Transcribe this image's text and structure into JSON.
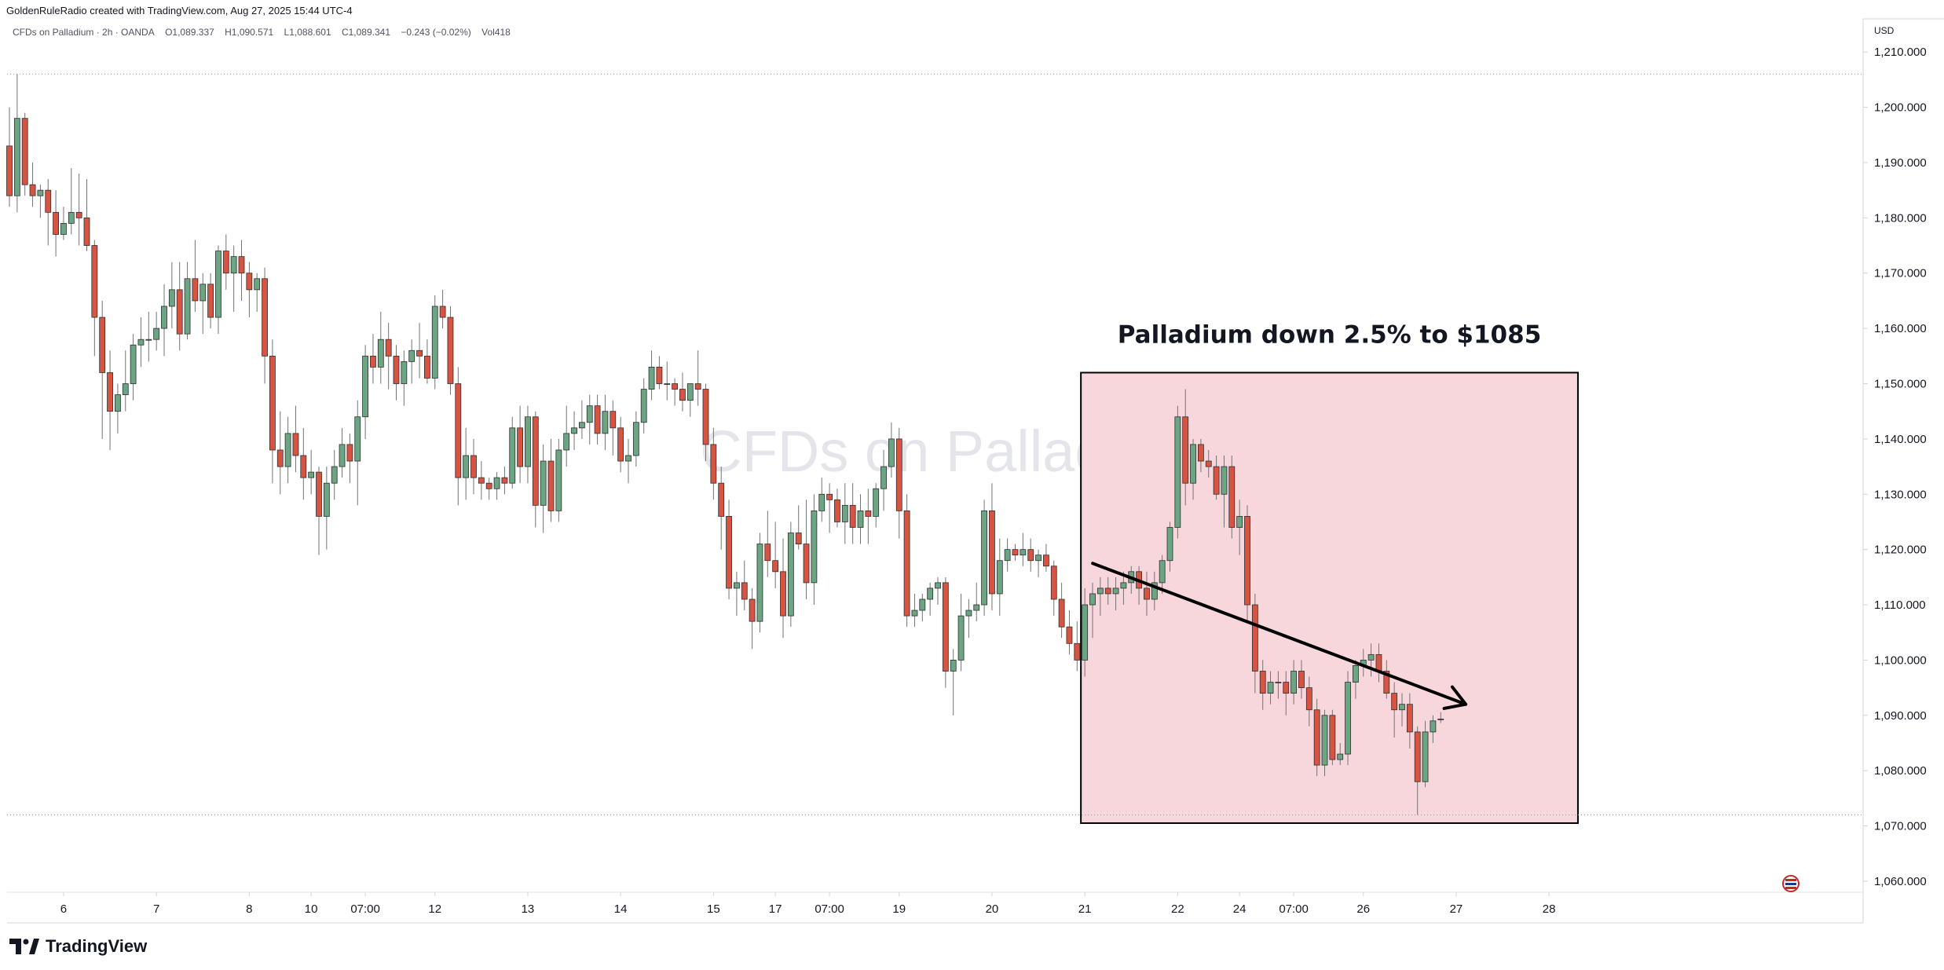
{
  "header": {
    "credit": "GoldenRuleRadio created with TradingView.com, Aug 27, 2025 15:44 UTC-4",
    "symbol": "CFDs on Palladium · 2h · OANDA",
    "open": "O1,089.337",
    "high": "H1,090.571",
    "low": "L1,088.601",
    "close": "C1,089.341",
    "change": "−0.243 (−0.02%)",
    "volume": "Vol418"
  },
  "currency": "USD",
  "watermark": "CFDs on Palladium",
  "brand": {
    "name": "TradingView",
    "icon": "tradingview-logo-icon"
  },
  "colors": {
    "up": "#6ba583",
    "down": "#d75442",
    "box_fill": "#f8d7dc",
    "text": "#131722",
    "axis_text": "#131722"
  },
  "chart_data": {
    "type": "candlestick",
    "symbol": "CFDs on Palladium",
    "interval": "2h",
    "ylim": [
      1058,
      1216
    ],
    "yticks": [
      1060,
      1070,
      1080,
      1090,
      1100,
      1110,
      1120,
      1130,
      1140,
      1150,
      1160,
      1170,
      1180,
      1190,
      1200,
      1210
    ],
    "ytick_labels": [
      "1,060.000",
      "1,070.000",
      "1,080.000",
      "1,090.000",
      "1,100.000",
      "1,110.000",
      "1,120.000",
      "1,130.000",
      "1,140.000",
      "1,150.000",
      "1,160.000",
      "1,170.000",
      "1,180.000",
      "1,190.000",
      "1,200.000",
      "1,210.000"
    ],
    "xticks": [
      {
        "i": 7,
        "label": "6"
      },
      {
        "i": 19,
        "label": "7"
      },
      {
        "i": 31,
        "label": "8"
      },
      {
        "i": 39,
        "label": "10"
      },
      {
        "i": 46,
        "label": "07:00"
      },
      {
        "i": 55,
        "label": "12"
      },
      {
        "i": 67,
        "label": "13"
      },
      {
        "i": 79,
        "label": "14"
      },
      {
        "i": 91,
        "label": "15"
      },
      {
        "i": 99,
        "label": "17"
      },
      {
        "i": 106,
        "label": "07:00"
      },
      {
        "i": 115,
        "label": "19"
      },
      {
        "i": 127,
        "label": "20"
      },
      {
        "i": 139,
        "label": "21"
      },
      {
        "i": 151,
        "label": "22"
      },
      {
        "i": 159,
        "label": "24"
      },
      {
        "i": 166,
        "label": "07:00"
      },
      {
        "i": 175,
        "label": "26"
      },
      {
        "i": 187,
        "label": "27"
      },
      {
        "i": 199,
        "label": "28"
      }
    ],
    "levels": [
      1206,
      1072
    ],
    "candles": [
      [
        1193,
        1200,
        1182,
        1184
      ],
      [
        1184,
        1206,
        1181,
        1198
      ],
      [
        1198,
        1199,
        1184,
        1186
      ],
      [
        1186,
        1190,
        1182,
        1184
      ],
      [
        1184,
        1186,
        1180,
        1185
      ],
      [
        1185,
        1187,
        1175,
        1181
      ],
      [
        1181,
        1185,
        1173,
        1177
      ],
      [
        1177,
        1182,
        1176,
        1179
      ],
      [
        1179,
        1189,
        1177,
        1181
      ],
      [
        1181,
        1188,
        1175,
        1180
      ],
      [
        1180,
        1187,
        1174,
        1175
      ],
      [
        1175,
        1176,
        1155,
        1162
      ],
      [
        1162,
        1165,
        1140,
        1152
      ],
      [
        1152,
        1156,
        1138,
        1145
      ],
      [
        1145,
        1150,
        1141,
        1148
      ],
      [
        1148,
        1156,
        1145,
        1150
      ],
      [
        1150,
        1159,
        1147,
        1157
      ],
      [
        1157,
        1162,
        1153,
        1158
      ],
      [
        1158,
        1163,
        1154,
        1158
      ],
      [
        1158,
        1163,
        1156,
        1160
      ],
      [
        1160,
        1168,
        1155,
        1164
      ],
      [
        1164,
        1172,
        1160,
        1167
      ],
      [
        1167,
        1172,
        1156,
        1159
      ],
      [
        1159,
        1172,
        1158,
        1169
      ],
      [
        1169,
        1176,
        1163,
        1165
      ],
      [
        1165,
        1170,
        1159,
        1168
      ],
      [
        1168,
        1170,
        1160,
        1162
      ],
      [
        1162,
        1175,
        1159,
        1174
      ],
      [
        1174,
        1177,
        1167,
        1170
      ],
      [
        1170,
        1175,
        1163,
        1173
      ],
      [
        1173,
        1176,
        1165,
        1170
      ],
      [
        1170,
        1172,
        1162,
        1167
      ],
      [
        1167,
        1170,
        1163,
        1169
      ],
      [
        1169,
        1171,
        1150,
        1155
      ],
      [
        1155,
        1158,
        1132,
        1138
      ],
      [
        1138,
        1145,
        1130,
        1135
      ],
      [
        1135,
        1144,
        1132,
        1141
      ],
      [
        1141,
        1146,
        1134,
        1137
      ],
      [
        1137,
        1142,
        1129,
        1133
      ],
      [
        1133,
        1138,
        1130,
        1134
      ],
      [
        1134,
        1135,
        1119,
        1126
      ],
      [
        1126,
        1135,
        1120,
        1132
      ],
      [
        1132,
        1138,
        1129,
        1135
      ],
      [
        1135,
        1142,
        1133,
        1139
      ],
      [
        1139,
        1141,
        1132,
        1136
      ],
      [
        1136,
        1147,
        1128,
        1144
      ],
      [
        1144,
        1157,
        1140,
        1155
      ],
      [
        1155,
        1159,
        1150,
        1153
      ],
      [
        1153,
        1163,
        1150,
        1158
      ],
      [
        1158,
        1161,
        1149,
        1155
      ],
      [
        1155,
        1157,
        1147,
        1150
      ],
      [
        1150,
        1156,
        1146,
        1154
      ],
      [
        1154,
        1158,
        1150,
        1156
      ],
      [
        1156,
        1161,
        1151,
        1155
      ],
      [
        1155,
        1158,
        1150,
        1151
      ],
      [
        1151,
        1166,
        1149,
        1164
      ],
      [
        1164,
        1167,
        1160,
        1162
      ],
      [
        1162,
        1164,
        1148,
        1150
      ],
      [
        1150,
        1153,
        1128,
        1133
      ],
      [
        1133,
        1142,
        1129,
        1137
      ],
      [
        1137,
        1140,
        1130,
        1133
      ],
      [
        1133,
        1136,
        1129,
        1132
      ],
      [
        1132,
        1133,
        1129,
        1131
      ],
      [
        1131,
        1134,
        1129,
        1133
      ],
      [
        1133,
        1135,
        1130,
        1132
      ],
      [
        1132,
        1144,
        1131,
        1142
      ],
      [
        1142,
        1146,
        1132,
        1135
      ],
      [
        1135,
        1146,
        1132,
        1144
      ],
      [
        1144,
        1145,
        1124,
        1128
      ],
      [
        1128,
        1139,
        1123,
        1136
      ],
      [
        1136,
        1140,
        1125,
        1127
      ],
      [
        1127,
        1140,
        1125,
        1138
      ],
      [
        1138,
        1146,
        1135,
        1141
      ],
      [
        1141,
        1145,
        1138,
        1142
      ],
      [
        1142,
        1147,
        1140,
        1143
      ],
      [
        1143,
        1148,
        1139,
        1146
      ],
      [
        1146,
        1148,
        1139,
        1141
      ],
      [
        1141,
        1148,
        1138,
        1145
      ],
      [
        1145,
        1147,
        1137,
        1142
      ],
      [
        1142,
        1144,
        1134,
        1136
      ],
      [
        1136,
        1140,
        1132,
        1137
      ],
      [
        1137,
        1145,
        1135,
        1143
      ],
      [
        1143,
        1151,
        1141,
        1149
      ],
      [
        1149,
        1156,
        1147,
        1153
      ],
      [
        1153,
        1155,
        1149,
        1150
      ],
      [
        1150,
        1154,
        1147,
        1150
      ],
      [
        1150,
        1151,
        1146,
        1149
      ],
      [
        1149,
        1152,
        1145,
        1147
      ],
      [
        1147,
        1150,
        1144,
        1150
      ],
      [
        1150,
        1156,
        1146,
        1149
      ],
      [
        1149,
        1150,
        1136,
        1139
      ],
      [
        1139,
        1142,
        1129,
        1132
      ],
      [
        1132,
        1135,
        1120,
        1126
      ],
      [
        1126,
        1129,
        1111,
        1113
      ],
      [
        1113,
        1116,
        1108,
        1114
      ],
      [
        1114,
        1118,
        1109,
        1111
      ],
      [
        1111,
        1113,
        1102,
        1107
      ],
      [
        1107,
        1123,
        1105,
        1121
      ],
      [
        1121,
        1127,
        1115,
        1118
      ],
      [
        1118,
        1125,
        1113,
        1116
      ],
      [
        1116,
        1122,
        1104,
        1108
      ],
      [
        1108,
        1125,
        1106,
        1123
      ],
      [
        1123,
        1128,
        1120,
        1121
      ],
      [
        1121,
        1129,
        1111,
        1114
      ],
      [
        1114,
        1130,
        1110,
        1127
      ],
      [
        1127,
        1133,
        1125,
        1130
      ],
      [
        1130,
        1132,
        1123,
        1129
      ],
      [
        1129,
        1131,
        1124,
        1125
      ],
      [
        1125,
        1132,
        1121,
        1128
      ],
      [
        1128,
        1132,
        1121,
        1124
      ],
      [
        1124,
        1130,
        1121,
        1127
      ],
      [
        1127,
        1131,
        1121,
        1126
      ],
      [
        1126,
        1132,
        1124,
        1131
      ],
      [
        1131,
        1138,
        1127,
        1135
      ],
      [
        1135,
        1143,
        1133,
        1140
      ],
      [
        1140,
        1142,
        1122,
        1127
      ],
      [
        1127,
        1130,
        1106,
        1108
      ],
      [
        1108,
        1112,
        1106,
        1109
      ],
      [
        1109,
        1112,
        1107,
        1111
      ],
      [
        1111,
        1114,
        1108,
        1113
      ],
      [
        1113,
        1115,
        1110,
        1114
      ],
      [
        1114,
        1115,
        1095,
        1098
      ],
      [
        1098,
        1102,
        1090,
        1100
      ],
      [
        1100,
        1112,
        1098,
        1108
      ],
      [
        1108,
        1111,
        1104,
        1109
      ],
      [
        1109,
        1114,
        1107,
        1110
      ],
      [
        1110,
        1129,
        1108,
        1127
      ],
      [
        1127,
        1132,
        1109,
        1112
      ],
      [
        1112,
        1122,
        1108,
        1118
      ],
      [
        1118,
        1122,
        1116,
        1120
      ],
      [
        1120,
        1121,
        1118,
        1119
      ],
      [
        1119,
        1123,
        1117,
        1120
      ],
      [
        1120,
        1122,
        1116,
        1118
      ],
      [
        1118,
        1120,
        1115,
        1119
      ],
      [
        1119,
        1121,
        1116,
        1117
      ],
      [
        1117,
        1118,
        1108,
        1111
      ],
      [
        1111,
        1114,
        1104,
        1106
      ],
      [
        1106,
        1109,
        1101,
        1103
      ],
      [
        1103,
        1107,
        1098,
        1100
      ],
      [
        1100,
        1113,
        1097,
        1110
      ],
      [
        1110,
        1114,
        1104,
        1112
      ],
      [
        1112,
        1115,
        1108,
        1113
      ],
      [
        1113,
        1115,
        1110,
        1112
      ],
      [
        1112,
        1115,
        1109,
        1113
      ],
      [
        1113,
        1116,
        1110,
        1114
      ],
      [
        1114,
        1117,
        1112,
        1116
      ],
      [
        1116,
        1117,
        1110,
        1113
      ],
      [
        1113,
        1116,
        1108,
        1111
      ],
      [
        1111,
        1116,
        1109,
        1114
      ],
      [
        1114,
        1119,
        1112,
        1118
      ],
      [
        1118,
        1125,
        1116,
        1124
      ],
      [
        1124,
        1146,
        1122,
        1144
      ],
      [
        1144,
        1149,
        1128,
        1132
      ],
      [
        1132,
        1140,
        1129,
        1139
      ],
      [
        1139,
        1140,
        1134,
        1136
      ],
      [
        1136,
        1138,
        1133,
        1135
      ],
      [
        1135,
        1137,
        1129,
        1130
      ],
      [
        1130,
        1137,
        1124,
        1135
      ],
      [
        1135,
        1137,
        1122,
        1124
      ],
      [
        1124,
        1129,
        1119,
        1126
      ],
      [
        1126,
        1128,
        1107,
        1110
      ],
      [
        1110,
        1112,
        1094,
        1098
      ],
      [
        1098,
        1100,
        1091,
        1094
      ],
      [
        1094,
        1098,
        1092,
        1096
      ],
      [
        1096,
        1098,
        1093,
        1096
      ],
      [
        1096,
        1098,
        1090,
        1094
      ],
      [
        1094,
        1100,
        1092,
        1098
      ],
      [
        1098,
        1100,
        1093,
        1095
      ],
      [
        1095,
        1097,
        1088,
        1091
      ],
      [
        1091,
        1093,
        1079,
        1081
      ],
      [
        1081,
        1091,
        1079,
        1090
      ],
      [
        1090,
        1091,
        1081,
        1082
      ],
      [
        1082,
        1085,
        1081,
        1083
      ],
      [
        1083,
        1098,
        1081,
        1096
      ],
      [
        1096,
        1100,
        1093,
        1099
      ],
      [
        1099,
        1102,
        1097,
        1100
      ],
      [
        1100,
        1103,
        1097,
        1101
      ],
      [
        1101,
        1103,
        1096,
        1098
      ],
      [
        1098,
        1100,
        1093,
        1094
      ],
      [
        1094,
        1096,
        1086,
        1091
      ],
      [
        1091,
        1094,
        1088,
        1092
      ],
      [
        1092,
        1094,
        1084,
        1087
      ],
      [
        1087,
        1088,
        1072,
        1078
      ],
      [
        1078,
        1089,
        1077,
        1087
      ],
      [
        1087,
        1090,
        1085,
        1089
      ],
      [
        1089.337,
        1090.571,
        1088.601,
        1089.341
      ]
    ],
    "highlight_box": {
      "i_start": 139,
      "i_end": 187,
      "y_top": 1152,
      "y_bottom": 1070.5
    },
    "annotation": "Palladium down 2.5% to $1085",
    "trend_arrow": {
      "from": [
        139,
        1117.5
      ],
      "to": [
        186,
        1092
      ]
    }
  }
}
